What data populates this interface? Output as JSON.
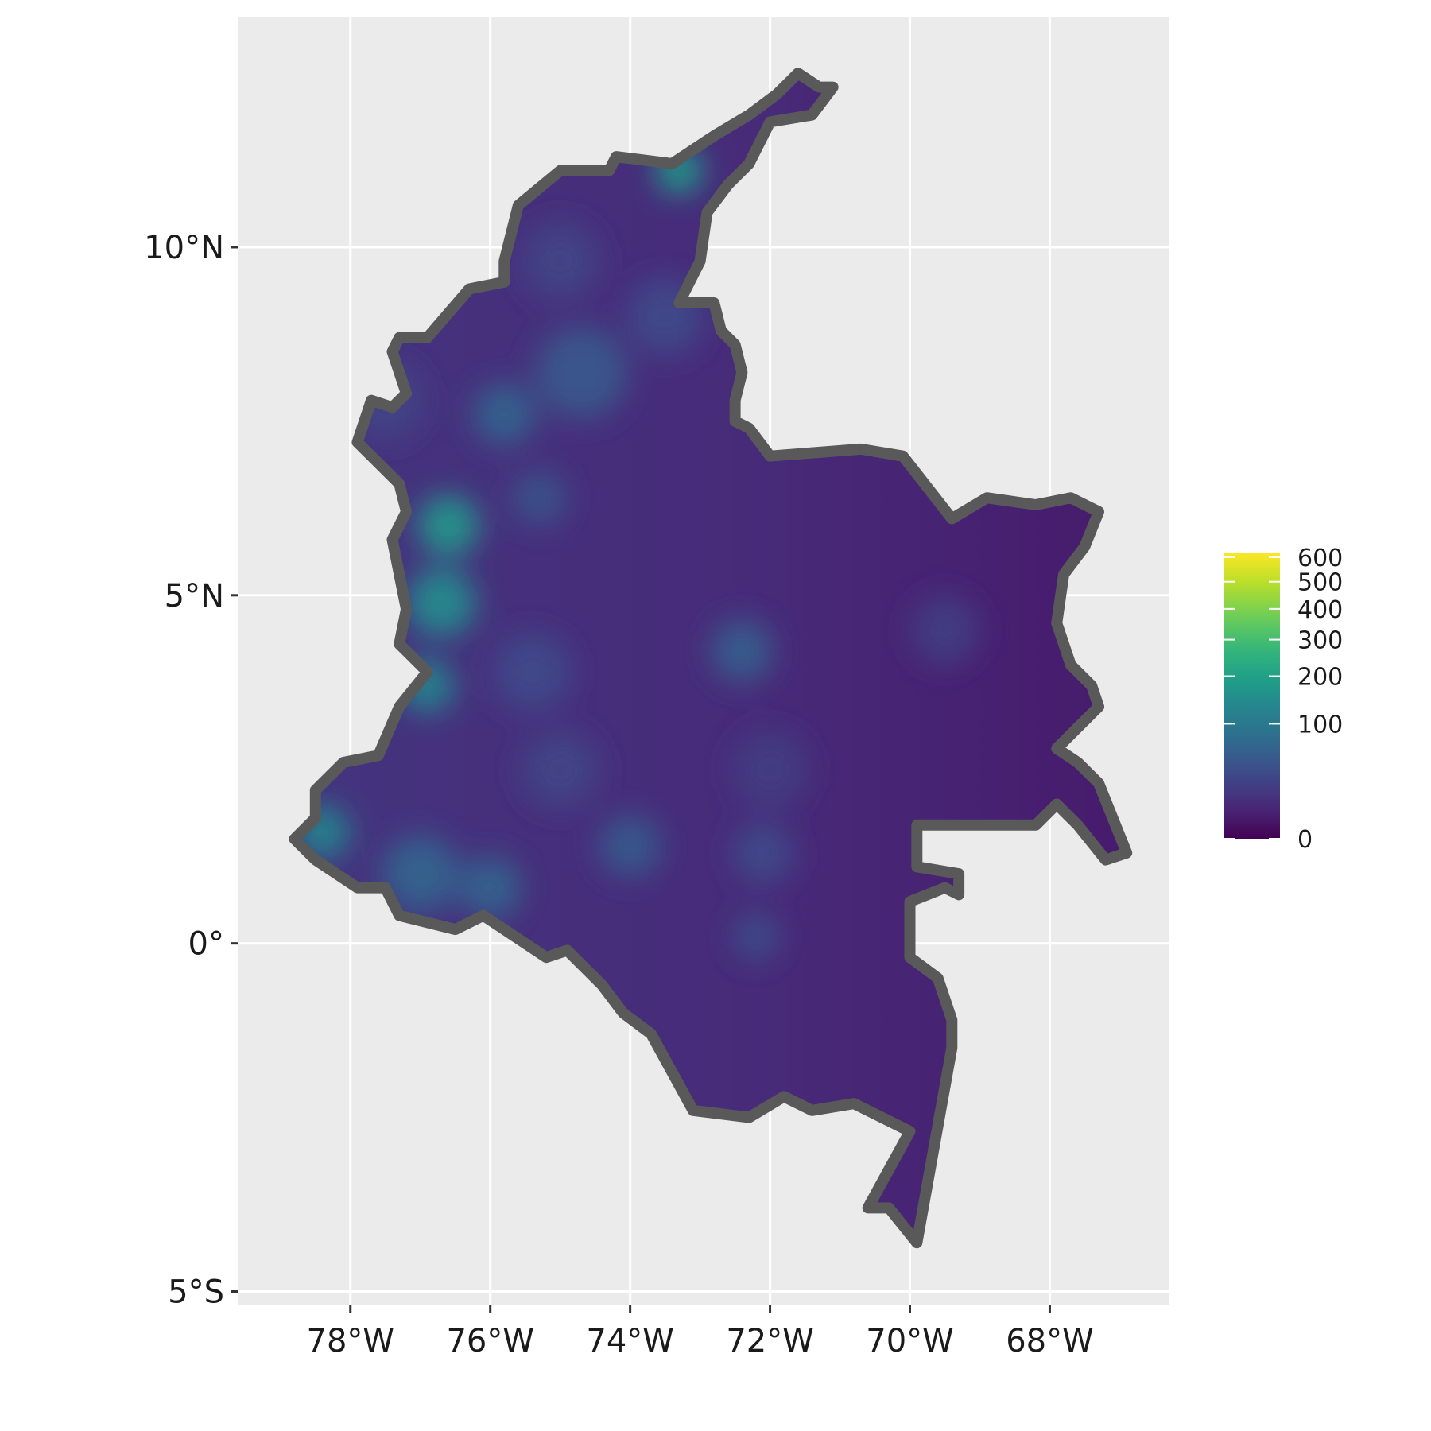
{
  "chart_data": {
    "type": "heatmap",
    "title": "",
    "xlabel": "",
    "ylabel": "",
    "x_ticks": [
      {
        "lon": -78,
        "label": "78°W"
      },
      {
        "lon": -76,
        "label": "76°W"
      },
      {
        "lon": -74,
        "label": "74°W"
      },
      {
        "lon": -72,
        "label": "72°W"
      },
      {
        "lon": -70,
        "label": "70°W"
      },
      {
        "lon": -68,
        "label": "68°W"
      }
    ],
    "y_ticks": [
      {
        "lat": 10,
        "label": "10°N"
      },
      {
        "lat": 5,
        "label": "5°N"
      },
      {
        "lat": 0,
        "label": "0°"
      },
      {
        "lat": -5,
        "label": "5°S"
      }
    ],
    "xlim": [
      -79.6,
      -66.3
    ],
    "ylim": [
      -5.2,
      13.3
    ],
    "grid": true,
    "legend": {
      "placement": "right",
      "scale": "sqrt",
      "colormap": "viridis",
      "breaks": [
        {
          "value": 600,
          "label": "600"
        },
        {
          "value": 500,
          "label": "500"
        },
        {
          "value": 400,
          "label": "400"
        },
        {
          "value": 300,
          "label": "300"
        },
        {
          "value": 200,
          "label": "200"
        },
        {
          "value": 100,
          "label": "100"
        },
        {
          "value": 0,
          "label": "0"
        }
      ],
      "range": [
        0,
        620
      ]
    },
    "boundary": [
      [
        -71.3,
        12.3
      ],
      [
        -71.6,
        12.5
      ],
      [
        -71.9,
        12.2
      ],
      [
        -72.3,
        11.9
      ],
      [
        -72.8,
        11.6
      ],
      [
        -73.4,
        11.2
      ],
      [
        -74.2,
        11.3
      ],
      [
        -74.3,
        11.1
      ],
      [
        -75.0,
        11.1
      ],
      [
        -75.6,
        10.6
      ],
      [
        -75.8,
        9.8
      ],
      [
        -75.8,
        9.5
      ],
      [
        -76.3,
        9.4
      ],
      [
        -76.9,
        8.7
      ],
      [
        -77.3,
        8.7
      ],
      [
        -77.4,
        8.5
      ],
      [
        -77.2,
        7.9
      ],
      [
        -77.4,
        7.7
      ],
      [
        -77.7,
        7.8
      ],
      [
        -77.9,
        7.2
      ],
      [
        -77.3,
        6.6
      ],
      [
        -77.2,
        6.2
      ],
      [
        -77.4,
        5.8
      ],
      [
        -77.2,
        4.8
      ],
      [
        -77.3,
        4.3
      ],
      [
        -76.9,
        3.9
      ],
      [
        -77.3,
        3.4
      ],
      [
        -77.6,
        2.7
      ],
      [
        -78.1,
        2.6
      ],
      [
        -78.5,
        2.2
      ],
      [
        -78.5,
        1.8
      ],
      [
        -78.8,
        1.5
      ],
      [
        -78.5,
        1.2
      ],
      [
        -77.9,
        0.8
      ],
      [
        -77.5,
        0.8
      ],
      [
        -77.3,
        0.4
      ],
      [
        -76.5,
        0.2
      ],
      [
        -76.1,
        0.4
      ],
      [
        -75.8,
        0.2
      ],
      [
        -75.2,
        -0.2
      ],
      [
        -74.9,
        -0.1
      ],
      [
        -74.4,
        -0.6
      ],
      [
        -74.1,
        -1.0
      ],
      [
        -73.7,
        -1.3
      ],
      [
        -73.1,
        -2.4
      ],
      [
        -72.3,
        -2.5
      ],
      [
        -71.8,
        -2.2
      ],
      [
        -71.4,
        -2.4
      ],
      [
        -70.8,
        -2.3
      ],
      [
        -70.0,
        -2.7
      ],
      [
        -70.6,
        -3.8
      ],
      [
        -70.3,
        -3.8
      ],
      [
        -69.9,
        -4.3
      ],
      [
        -69.4,
        -1.5
      ],
      [
        -69.4,
        -1.1
      ],
      [
        -69.6,
        -0.5
      ],
      [
        -70.0,
        -0.2
      ],
      [
        -70.0,
        0.6
      ],
      [
        -69.5,
        0.8
      ],
      [
        -69.3,
        0.7
      ],
      [
        -69.3,
        1.0
      ],
      [
        -69.9,
        1.1
      ],
      [
        -69.9,
        1.7
      ],
      [
        -68.2,
        1.7
      ],
      [
        -67.9,
        2.0
      ],
      [
        -67.6,
        1.7
      ],
      [
        -67.2,
        1.2
      ],
      [
        -66.9,
        1.3
      ],
      [
        -67.3,
        2.3
      ],
      [
        -67.6,
        2.6
      ],
      [
        -67.9,
        2.8
      ],
      [
        -67.3,
        3.4
      ],
      [
        -67.4,
        3.7
      ],
      [
        -67.7,
        4.0
      ],
      [
        -67.9,
        4.6
      ],
      [
        -67.8,
        5.3
      ],
      [
        -67.5,
        5.7
      ],
      [
        -67.3,
        6.2
      ],
      [
        -67.7,
        6.4
      ],
      [
        -68.2,
        6.3
      ],
      [
        -68.9,
        6.4
      ],
      [
        -69.4,
        6.1
      ],
      [
        -70.1,
        7.0
      ],
      [
        -70.7,
        7.1
      ],
      [
        -72.0,
        7.0
      ],
      [
        -72.3,
        7.4
      ],
      [
        -72.5,
        7.5
      ],
      [
        -72.5,
        7.8
      ],
      [
        -72.4,
        8.2
      ],
      [
        -72.5,
        8.6
      ],
      [
        -72.7,
        8.8
      ],
      [
        -72.8,
        9.2
      ],
      [
        -73.3,
        9.2
      ],
      [
        -73.0,
        9.8
      ],
      [
        -72.9,
        10.5
      ],
      [
        -72.6,
        10.9
      ],
      [
        -72.3,
        11.2
      ],
      [
        -72.0,
        11.8
      ],
      [
        -71.4,
        11.9
      ],
      [
        -71.1,
        12.3
      ]
    ],
    "hotspots": [
      {
        "lon": -73.3,
        "lat": 11.1,
        "value": 190,
        "radius": 0.6
      },
      {
        "lon": -76.6,
        "lat": 6.0,
        "value": 170,
        "radius": 0.8
      },
      {
        "lon": -76.7,
        "lat": 4.9,
        "value": 140,
        "radius": 0.9
      },
      {
        "lon": -76.9,
        "lat": 3.7,
        "value": 130,
        "radius": 0.7
      },
      {
        "lon": -78.4,
        "lat": 1.6,
        "value": 130,
        "radius": 0.7
      },
      {
        "lon": -77.0,
        "lat": 1.0,
        "value": 60,
        "radius": 1.0
      },
      {
        "lon": -76.0,
        "lat": 0.8,
        "value": 60,
        "radius": 0.8
      },
      {
        "lon": -75.8,
        "lat": 7.6,
        "value": 60,
        "radius": 0.8
      },
      {
        "lon": -74.7,
        "lat": 8.2,
        "value": 45,
        "radius": 1.2
      },
      {
        "lon": -75.3,
        "lat": 6.4,
        "value": 40,
        "radius": 0.7
      },
      {
        "lon": -72.4,
        "lat": 4.2,
        "value": 55,
        "radius": 0.8
      },
      {
        "lon": -74.0,
        "lat": 1.4,
        "value": 50,
        "radius": 0.8
      },
      {
        "lon": -72.1,
        "lat": 1.3,
        "value": 30,
        "radius": 0.8
      },
      {
        "lon": -72.2,
        "lat": 0.1,
        "value": 35,
        "radius": 0.6
      },
      {
        "lon": -75.4,
        "lat": 3.9,
        "value": 30,
        "radius": 1.0
      },
      {
        "lon": -77.5,
        "lat": 7.8,
        "value": 25,
        "radius": 1.0
      },
      {
        "lon": -69.5,
        "lat": 4.5,
        "value": 20,
        "radius": 0.9
      },
      {
        "lon": -72.0,
        "lat": 2.5,
        "value": 20,
        "radius": 1.0
      },
      {
        "lon": -75.0,
        "lat": 9.8,
        "value": 25,
        "radius": 1.0
      },
      {
        "lon": -73.5,
        "lat": 9.0,
        "value": 30,
        "radius": 1.0
      },
      {
        "lon": -75.0,
        "lat": 2.5,
        "value": 25,
        "radius": 1.0
      }
    ],
    "base_value_west": 15,
    "base_value_east": 3,
    "colors": {
      "panel_background": "#ebebeb",
      "grid_line": "#ffffff",
      "boundary": "#595959",
      "viridis": [
        "#440154",
        "#482878",
        "#3e4989",
        "#31688e",
        "#26828e",
        "#1f9e89",
        "#35b779",
        "#6ece58",
        "#b5de2b",
        "#fde725"
      ]
    }
  }
}
